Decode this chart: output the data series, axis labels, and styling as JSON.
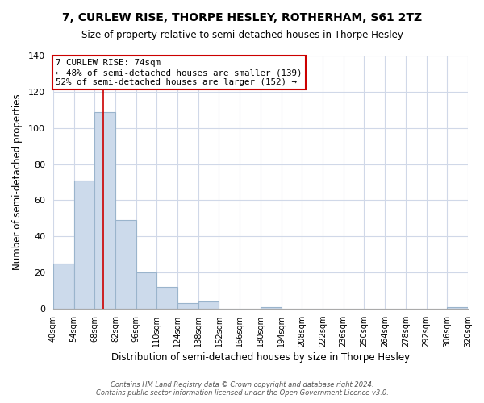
{
  "title": "7, CURLEW RISE, THORPE HESLEY, ROTHERHAM, S61 2TZ",
  "subtitle": "Size of property relative to semi-detached houses in Thorpe Hesley",
  "xlabel": "Distribution of semi-detached houses by size in Thorpe Hesley",
  "ylabel": "Number of semi-detached properties",
  "bin_labels": [
    "40sqm",
    "54sqm",
    "68sqm",
    "82sqm",
    "96sqm",
    "110sqm",
    "124sqm",
    "138sqm",
    "152sqm",
    "166sqm",
    "180sqm",
    "194sqm",
    "208sqm",
    "222sqm",
    "236sqm",
    "250sqm",
    "264sqm",
    "278sqm",
    "292sqm",
    "306sqm",
    "320sqm"
  ],
  "bar_heights": [
    25,
    71,
    109,
    49,
    20,
    12,
    3,
    4,
    0,
    0,
    1,
    0,
    0,
    0,
    0,
    0,
    0,
    0,
    0,
    1,
    0
  ],
  "bar_color": "#ccdaeb",
  "bar_edge_color": "#9ab4cc",
  "property_line_x": 74,
  "bin_edges": [
    40,
    54,
    68,
    82,
    96,
    110,
    124,
    138,
    152,
    166,
    180,
    194,
    208,
    222,
    236,
    250,
    264,
    278,
    292,
    306,
    320
  ],
  "ylim": [
    0,
    140
  ],
  "yticks": [
    0,
    20,
    40,
    60,
    80,
    100,
    120,
    140
  ],
  "annotation_title": "7 CURLEW RISE: 74sqm",
  "annotation_line1": "← 48% of semi-detached houses are smaller (139)",
  "annotation_line2": "52% of semi-detached houses are larger (152) →",
  "annotation_box_color": "#ffffff",
  "annotation_box_edge": "#cc0000",
  "property_line_color": "#cc0000",
  "footer1": "Contains HM Land Registry data © Crown copyright and database right 2024.",
  "footer2": "Contains public sector information licensed under the Open Government Licence v3.0."
}
